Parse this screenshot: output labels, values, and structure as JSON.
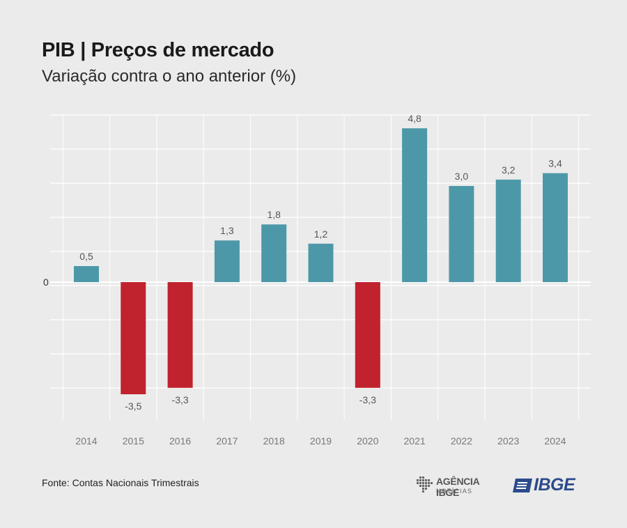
{
  "header": {
    "title": "PIB | Preços de mercado",
    "subtitle": "Variação contra o ano anterior (%)"
  },
  "footer": {
    "source": "Fonte: Contas Nacionais Trimestrais",
    "agencia_name": "AGÊNCIA IBGE",
    "agencia_sub": "NOTÍCIAS",
    "ibge_name": "IBGE"
  },
  "colors": {
    "positive": "#4d98a8",
    "negative": "#c0222e",
    "background": "#ebebeb",
    "grid": "#ffffff",
    "tick_label": "#777777",
    "logo_blue": "#2b4a8b"
  },
  "chart_data": {
    "type": "bar",
    "title": "PIB | Preços de mercado",
    "subtitle": "Variação contra o ano anterior (%)",
    "xlabel": "",
    "ylabel": "",
    "categories": [
      "2014",
      "2015",
      "2016",
      "2017",
      "2018",
      "2019",
      "2020",
      "2021",
      "2022",
      "2023",
      "2024"
    ],
    "values": [
      0.5,
      -3.5,
      -3.3,
      1.3,
      1.8,
      1.2,
      -3.3,
      4.8,
      3.0,
      3.2,
      3.4
    ],
    "value_labels": [
      "0,5",
      "-3,5",
      "-3,3",
      "1,3",
      "1,8",
      "1,2",
      "-3,3",
      "4,8",
      "3,0",
      "3,2",
      "3,4"
    ],
    "ylim": [
      -4.2,
      5.2
    ],
    "y_tick_labels": [
      {
        "value": 0,
        "label": "0"
      }
    ],
    "grid": true,
    "legend": "none"
  }
}
